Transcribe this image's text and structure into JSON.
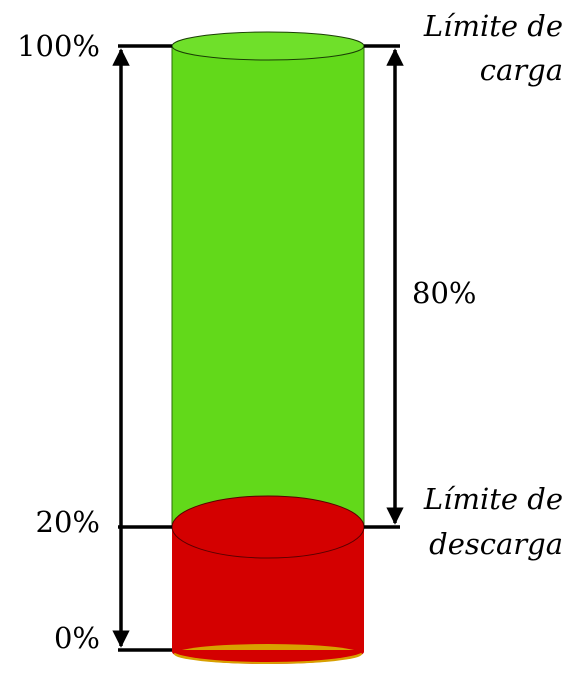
{
  "scale_labels": {
    "top": "100%",
    "discharge": "20%",
    "bottom": "0%"
  },
  "span_label": "80%",
  "charge_limit": {
    "lines": [
      "Límite de",
      "carga"
    ]
  },
  "discharge_limit": {
    "lines": [
      "Límite de",
      "descarga"
    ]
  }
}
